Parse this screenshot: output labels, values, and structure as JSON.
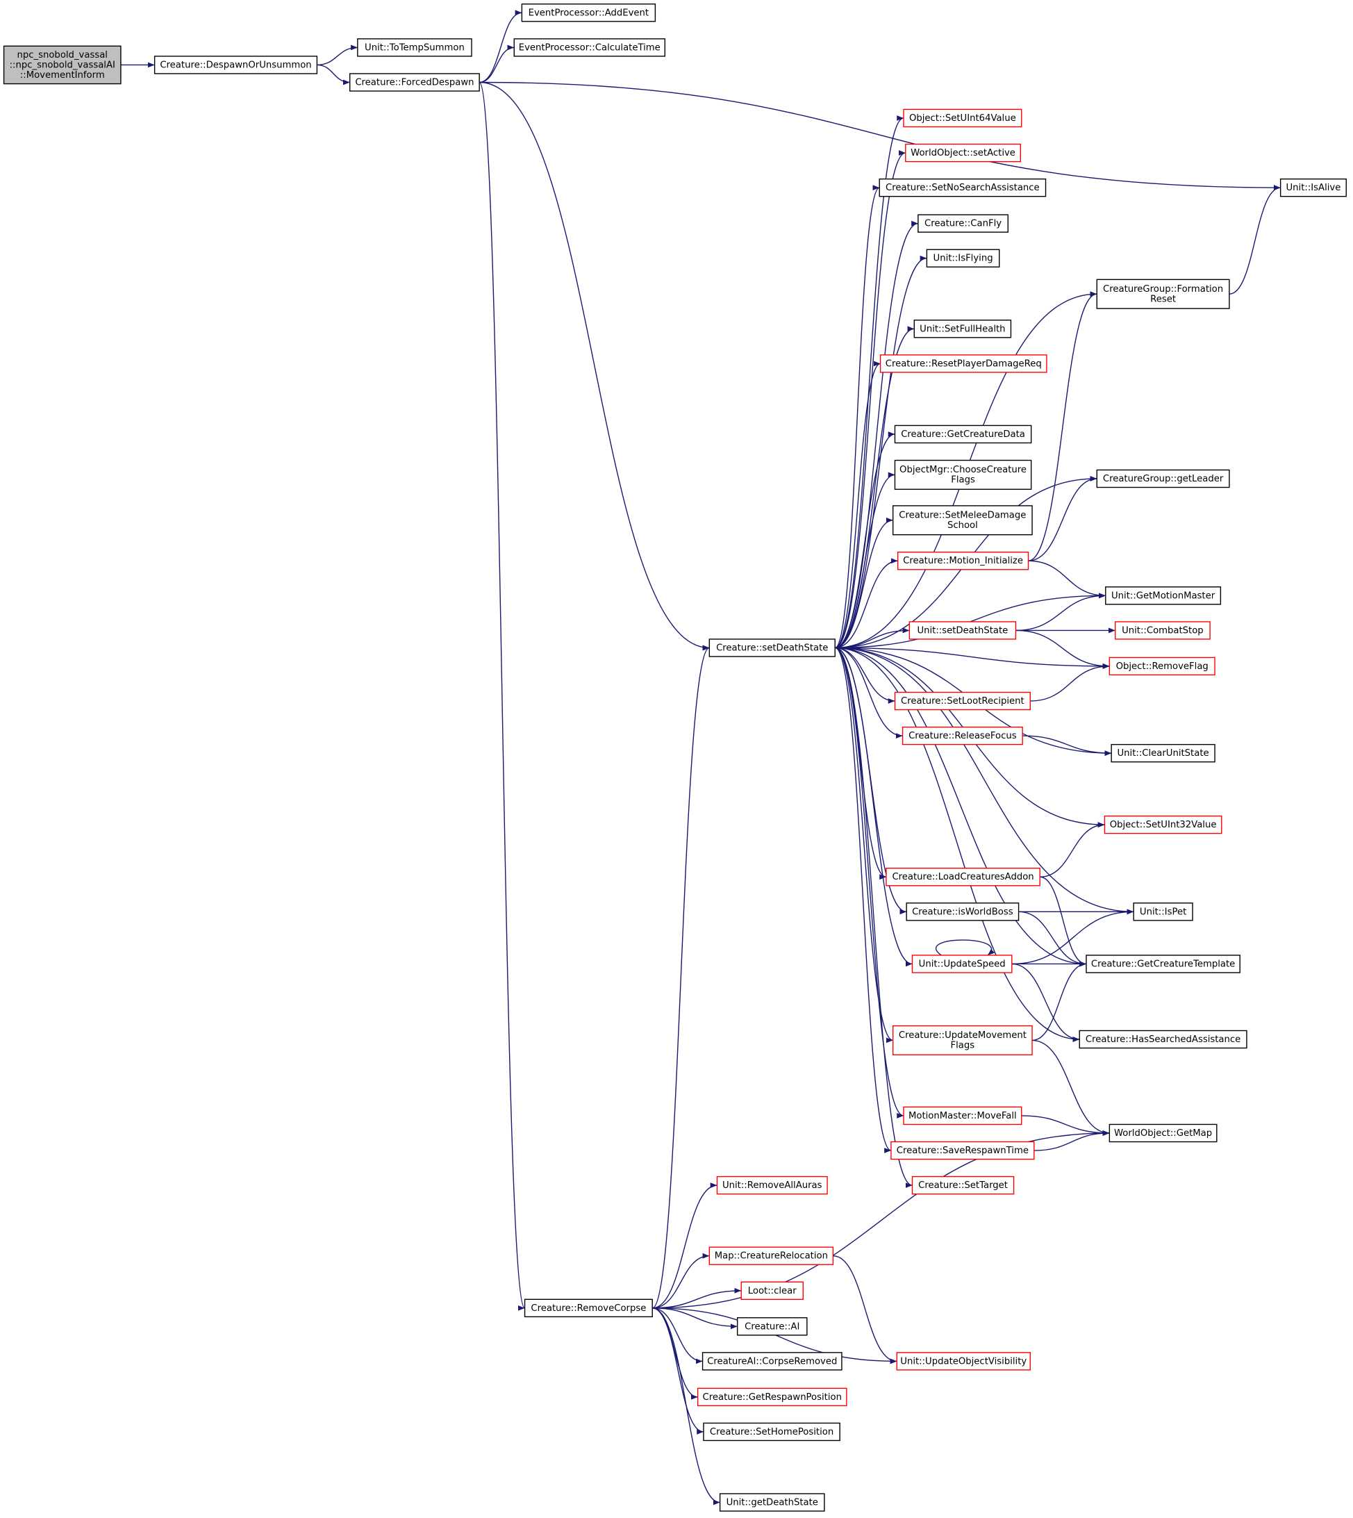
{
  "nodes": [
    {
      "lines": [
        "npc_snobold_vassal",
        "::npc_snobold_vassalAI",
        "::MovementInform"
      ],
      "border": "#000000",
      "fill": "#bfbfbf"
    },
    {
      "lines": [
        "Creature::DespawnOrUnsummon"
      ],
      "border": "#000000",
      "fill": "#ffffff"
    },
    {
      "lines": [
        "Unit::ToTempSummon"
      ],
      "border": "#000000",
      "fill": "#ffffff"
    },
    {
      "lines": [
        "Creature::ForcedDespawn"
      ],
      "border": "#000000",
      "fill": "#ffffff"
    },
    {
      "lines": [
        "EventProcessor::AddEvent"
      ],
      "border": "#000000",
      "fill": "#ffffff"
    },
    {
      "lines": [
        "EventProcessor::CalculateTime"
      ],
      "border": "#000000",
      "fill": "#ffffff"
    },
    {
      "lines": [
        "Unit::IsAlive"
      ],
      "border": "#000000",
      "fill": "#ffffff"
    },
    {
      "lines": [
        "Object::SetUInt64Value"
      ],
      "border": "#ff0000",
      "fill": "#ffffff"
    },
    {
      "lines": [
        "WorldObject::setActive"
      ],
      "border": "#ff0000",
      "fill": "#ffffff"
    },
    {
      "lines": [
        "Creature::SetNoSearchAssistance"
      ],
      "border": "#000000",
      "fill": "#ffffff"
    },
    {
      "lines": [
        "Creature::CanFly"
      ],
      "border": "#000000",
      "fill": "#ffffff"
    },
    {
      "lines": [
        "Unit::IsFlying"
      ],
      "border": "#000000",
      "fill": "#ffffff"
    },
    {
      "lines": [
        "CreatureGroup::Formation",
        "Reset"
      ],
      "border": "#000000",
      "fill": "#ffffff"
    },
    {
      "lines": [
        "Unit::SetFullHealth"
      ],
      "border": "#000000",
      "fill": "#ffffff"
    },
    {
      "lines": [
        "Creature::ResetPlayerDamageReq"
      ],
      "border": "#ff0000",
      "fill": "#ffffff"
    },
    {
      "lines": [
        "Creature::GetCreatureData"
      ],
      "border": "#000000",
      "fill": "#ffffff"
    },
    {
      "lines": [
        "ObjectMgr::ChooseCreature",
        "Flags"
      ],
      "border": "#000000",
      "fill": "#ffffff"
    },
    {
      "lines": [
        "Creature::SetMeleeDamage",
        "School"
      ],
      "border": "#000000",
      "fill": "#ffffff"
    },
    {
      "lines": [
        "CreatureGroup::getLeader"
      ],
      "border": "#000000",
      "fill": "#ffffff"
    },
    {
      "lines": [
        "Creature::Motion_Initialize"
      ],
      "border": "#ff0000",
      "fill": "#ffffff"
    },
    {
      "lines": [
        "Unit::GetMotionMaster"
      ],
      "border": "#000000",
      "fill": "#ffffff"
    },
    {
      "lines": [
        "Creature::setDeathState"
      ],
      "border": "#000000",
      "fill": "#ffffff"
    },
    {
      "lines": [
        "Unit::setDeathState"
      ],
      "border": "#ff0000",
      "fill": "#ffffff"
    },
    {
      "lines": [
        "Unit::CombatStop"
      ],
      "border": "#ff0000",
      "fill": "#ffffff"
    },
    {
      "lines": [
        "Object::RemoveFlag"
      ],
      "border": "#ff0000",
      "fill": "#ffffff"
    },
    {
      "lines": [
        "Creature::SetLootRecipient"
      ],
      "border": "#ff0000",
      "fill": "#ffffff"
    },
    {
      "lines": [
        "Creature::ReleaseFocus"
      ],
      "border": "#ff0000",
      "fill": "#ffffff"
    },
    {
      "lines": [
        "Unit::ClearUnitState"
      ],
      "border": "#000000",
      "fill": "#ffffff"
    },
    {
      "lines": [
        "Object::SetUInt32Value"
      ],
      "border": "#ff0000",
      "fill": "#ffffff"
    },
    {
      "lines": [
        "Creature::LoadCreaturesAddon"
      ],
      "border": "#ff0000",
      "fill": "#ffffff"
    },
    {
      "lines": [
        "Creature::isWorldBoss"
      ],
      "border": "#000000",
      "fill": "#ffffff"
    },
    {
      "lines": [
        "Unit::IsPet"
      ],
      "border": "#000000",
      "fill": "#ffffff"
    },
    {
      "lines": [
        "Unit::UpdateSpeed"
      ],
      "border": "#ff0000",
      "fill": "#ffffff"
    },
    {
      "lines": [
        "Creature::GetCreatureTemplate"
      ],
      "border": "#000000",
      "fill": "#ffffff"
    },
    {
      "lines": [
        "Creature::UpdateMovement",
        "Flags"
      ],
      "border": "#ff0000",
      "fill": "#ffffff"
    },
    {
      "lines": [
        "Creature::HasSearchedAssistance"
      ],
      "border": "#000000",
      "fill": "#ffffff"
    },
    {
      "lines": [
        "MotionMaster::MoveFall"
      ],
      "border": "#ff0000",
      "fill": "#ffffff"
    },
    {
      "lines": [
        "WorldObject::GetMap"
      ],
      "border": "#000000",
      "fill": "#ffffff"
    },
    {
      "lines": [
        "Creature::SaveRespawnTime"
      ],
      "border": "#ff0000",
      "fill": "#ffffff"
    },
    {
      "lines": [
        "Creature::SetTarget"
      ],
      "border": "#ff0000",
      "fill": "#ffffff"
    },
    {
      "lines": [
        "Unit::RemoveAllAuras"
      ],
      "border": "#ff0000",
      "fill": "#ffffff"
    },
    {
      "lines": [
        "Map::CreatureRelocation"
      ],
      "border": "#ff0000",
      "fill": "#ffffff"
    },
    {
      "lines": [
        "Loot::clear"
      ],
      "border": "#ff0000",
      "fill": "#ffffff"
    },
    {
      "lines": [
        "Creature::RemoveCorpse"
      ],
      "border": "#000000",
      "fill": "#ffffff"
    },
    {
      "lines": [
        "Creature::AI"
      ],
      "border": "#000000",
      "fill": "#ffffff"
    },
    {
      "lines": [
        "CreatureAI::CorpseRemoved"
      ],
      "border": "#000000",
      "fill": "#ffffff"
    },
    {
      "lines": [
        "Unit::UpdateObjectVisibility"
      ],
      "border": "#ff0000",
      "fill": "#ffffff"
    },
    {
      "lines": [
        "Creature::GetRespawnPosition"
      ],
      "border": "#ff0000",
      "fill": "#ffffff"
    },
    {
      "lines": [
        "Creature::SetHomePosition"
      ],
      "border": "#000000",
      "fill": "#ffffff"
    },
    {
      "lines": [
        "Unit::getDeathState"
      ],
      "border": "#000000",
      "fill": "#ffffff"
    }
  ]
}
